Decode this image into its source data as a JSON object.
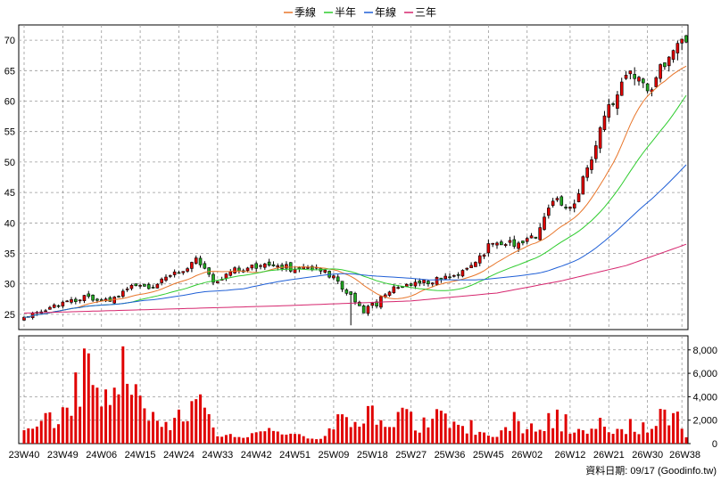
{
  "chart_data": {
    "type": "candlestick",
    "legend": [
      {
        "name": "季線",
        "color": "#e8762b"
      },
      {
        "name": "半年",
        "color": "#2ecc2e"
      },
      {
        "name": "年線",
        "color": "#1f5fd6"
      },
      {
        "name": "三年",
        "color": "#d6266e"
      }
    ],
    "legend_placement": "top-center",
    "grid": true,
    "price_axis": {
      "ticks": [
        25,
        30,
        35,
        40,
        45,
        50,
        55,
        60,
        65,
        70
      ],
      "range": [
        22.5,
        72.5
      ],
      "side": "left"
    },
    "volume_axis": {
      "ticks": [
        "0",
        "2,000",
        "4,000",
        "6,000",
        "8,000"
      ],
      "range": [
        0,
        9200
      ],
      "side": "right"
    },
    "x_labels": [
      "23W40",
      "23W49",
      "24W06",
      "24W15",
      "24W24",
      "24W33",
      "24W42",
      "24W51",
      "25W09",
      "25W18",
      "25W27",
      "25W36",
      "25W45",
      "26W02",
      "26W12",
      "26W21",
      "26W30",
      "26W38"
    ],
    "x_label_positions": [
      0,
      9,
      18,
      27,
      36,
      45,
      54,
      63,
      72,
      81,
      90,
      99,
      108,
      117,
      127,
      136,
      145,
      153
    ],
    "weeks": 155,
    "close_anchors": [
      [
        0,
        24.6
      ],
      [
        8,
        26.5
      ],
      [
        14,
        28
      ],
      [
        20,
        27.2
      ],
      [
        25,
        30
      ],
      [
        30,
        29.5
      ],
      [
        35,
        31.5
      ],
      [
        40,
        34
      ],
      [
        44,
        30.5
      ],
      [
        48,
        32
      ],
      [
        53,
        33
      ],
      [
        58,
        33.2
      ],
      [
        63,
        32.3
      ],
      [
        68,
        32.8
      ],
      [
        72,
        31
      ],
      [
        76,
        28
      ],
      [
        79,
        25.5
      ],
      [
        82,
        26.8
      ],
      [
        86,
        29.5
      ],
      [
        90,
        29.8
      ],
      [
        95,
        30.5
      ],
      [
        100,
        31.5
      ],
      [
        104,
        33
      ],
      [
        108,
        36
      ],
      [
        112,
        36.5
      ],
      [
        116,
        37
      ],
      [
        119,
        38
      ],
      [
        123,
        44
      ],
      [
        127,
        42
      ],
      [
        131,
        49
      ],
      [
        135,
        57
      ],
      [
        138,
        62
      ],
      [
        141,
        66
      ],
      [
        145,
        61
      ],
      [
        150,
        68
      ],
      [
        152,
        70
      ],
      [
        154,
        68.5
      ]
    ],
    "volume_anchors": [
      [
        0,
        1500
      ],
      [
        10,
        2500
      ],
      [
        15,
        7700
      ],
      [
        20,
        2800
      ],
      [
        23,
        8300
      ],
      [
        26,
        4500
      ],
      [
        30,
        1500
      ],
      [
        38,
        2600
      ],
      [
        42,
        4400
      ],
      [
        45,
        900
      ],
      [
        50,
        500
      ],
      [
        55,
        1000
      ],
      [
        60,
        1100
      ],
      [
        65,
        600
      ],
      [
        70,
        700
      ],
      [
        73,
        2000
      ],
      [
        76,
        1600
      ],
      [
        80,
        2800
      ],
      [
        85,
        1300
      ],
      [
        88,
        3000
      ],
      [
        92,
        1500
      ],
      [
        95,
        2300
      ],
      [
        100,
        1800
      ],
      [
        105,
        1000
      ],
      [
        110,
        800
      ],
      [
        115,
        1700
      ],
      [
        120,
        1100
      ],
      [
        125,
        1200
      ],
      [
        130,
        1300
      ],
      [
        135,
        1600
      ],
      [
        140,
        900
      ],
      [
        145,
        1500
      ],
      [
        149,
        2600
      ],
      [
        151,
        2800
      ],
      [
        154,
        700
      ]
    ],
    "spikes": [
      [
        9,
        3100
      ],
      [
        15,
        7700
      ],
      [
        16,
        5000
      ],
      [
        22,
        4200
      ],
      [
        23,
        8300
      ],
      [
        24,
        5100
      ],
      [
        30,
        2700
      ],
      [
        36,
        2900
      ],
      [
        41,
        4200
      ],
      [
        74,
        2500
      ],
      [
        87,
        2700
      ],
      [
        104,
        2000
      ],
      [
        114,
        2700
      ],
      [
        122,
        2600
      ],
      [
        124,
        2900
      ],
      [
        126,
        2500
      ],
      [
        134,
        2200
      ],
      [
        141,
        2100
      ],
      [
        149,
        2900
      ],
      [
        151,
        2600
      ]
    ],
    "dip_week": 76,
    "dip_low": 23.2,
    "ma_windows": {
      "季線": 13,
      "半年": 26,
      "年線": 52
    },
    "three_year_anchors": [
      [
        0,
        25.2
      ],
      [
        30,
        25.8
      ],
      [
        60,
        26.4
      ],
      [
        90,
        27.2
      ],
      [
        110,
        28.5
      ],
      [
        125,
        30.5
      ],
      [
        140,
        33
      ],
      [
        154,
        36.5
      ]
    ],
    "credit": "資料日期: 09/17 (Goodinfo.tw)"
  }
}
